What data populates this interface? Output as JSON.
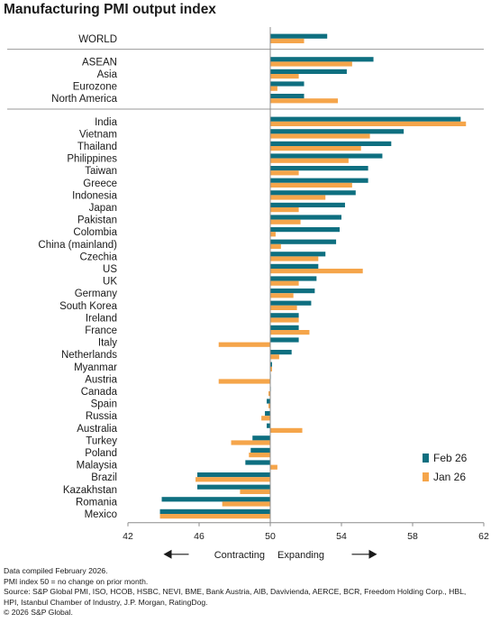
{
  "chart_data": {
    "type": "bar",
    "title": "Manufacturing PMI output index",
    "orientation": "horizontal",
    "categories": [
      "WORLD",
      "ASEAN",
      "Asia",
      "Eurozone",
      "North America",
      "India",
      "Vietnam",
      "Thailand",
      "Philippines",
      "Taiwan",
      "Greece",
      "Indonesia",
      "Japan",
      "Pakistan",
      "Colombia",
      "China (mainland)",
      "Czechia",
      "US",
      "UK",
      "Germany",
      "South Korea",
      "Ireland",
      "France",
      "Italy",
      "Netherlands",
      "Myanmar",
      "Austria",
      "Canada",
      "Spain",
      "Russia",
      "Australia",
      "Turkey",
      "Poland",
      "Malaysia",
      "Brazil",
      "Kazakhstan",
      "Romania",
      "Mexico"
    ],
    "groups": [
      [
        "WORLD"
      ],
      [
        "ASEAN",
        "Asia",
        "Eurozone",
        "North America"
      ],
      [
        "India",
        "Vietnam",
        "Thailand",
        "Philippines",
        "Taiwan",
        "Greece",
        "Indonesia",
        "Japan",
        "Pakistan",
        "Colombia",
        "China (mainland)",
        "Czechia",
        "US",
        "UK",
        "Germany",
        "South Korea",
        "Ireland",
        "France",
        "Italy",
        "Netherlands",
        "Myanmar",
        "Austria",
        "Canada",
        "Spain",
        "Russia",
        "Australia",
        "Turkey",
        "Poland",
        "Malaysia",
        "Brazil",
        "Kazakhstan",
        "Romania",
        "Mexico"
      ]
    ],
    "series": [
      {
        "name": "Feb 26",
        "color": "#0e6f80",
        "values": [
          53.2,
          55.8,
          54.3,
          51.9,
          51.9,
          60.7,
          57.5,
          56.8,
          56.3,
          55.5,
          55.5,
          54.8,
          54.2,
          54.0,
          53.9,
          53.7,
          53.1,
          52.7,
          52.6,
          52.5,
          52.3,
          51.6,
          51.6,
          51.6,
          51.2,
          50.1,
          50.0,
          50.0,
          49.8,
          49.7,
          49.8,
          49.0,
          48.9,
          48.6,
          45.9,
          45.9,
          43.9,
          43.8
        ]
      },
      {
        "name": "Jan 26",
        "color": "#f5a54a",
        "values": [
          51.9,
          54.6,
          51.6,
          50.4,
          53.8,
          61.0,
          55.6,
          55.1,
          54.4,
          51.6,
          54.6,
          53.1,
          51.6,
          51.7,
          50.3,
          50.6,
          52.7,
          55.2,
          51.6,
          51.3,
          51.5,
          51.6,
          52.2,
          47.1,
          50.5,
          50.1,
          47.1,
          49.9,
          49.9,
          49.5,
          51.8,
          47.8,
          48.8,
          50.4,
          45.8,
          48.3,
          47.3,
          43.8
        ]
      }
    ],
    "xlim": [
      42,
      62
    ],
    "xticks": [
      42,
      46,
      50,
      54,
      58,
      62
    ],
    "reference_line": 50,
    "direction_labels": {
      "left": "Contracting",
      "right": "Expanding"
    },
    "legend": [
      "Feb 26",
      "Jan 26"
    ],
    "legend_position": "bottom-right",
    "grid": false
  },
  "notes": [
    "Data compiled February 2026.",
    "PMI index 50 = no change on prior month.",
    "Source: S&P Global PMI, ISO, HCOB, HSBC, NEVI, BME, Bank Austria, AIB, Davivienda, AERCE, BCR, Freedom Holding Corp., HBL,",
    "HPI, Istanbul Chamber of Industry, J.P. Morgan, RatingDog.",
    "© 2026 S&P Global."
  ]
}
